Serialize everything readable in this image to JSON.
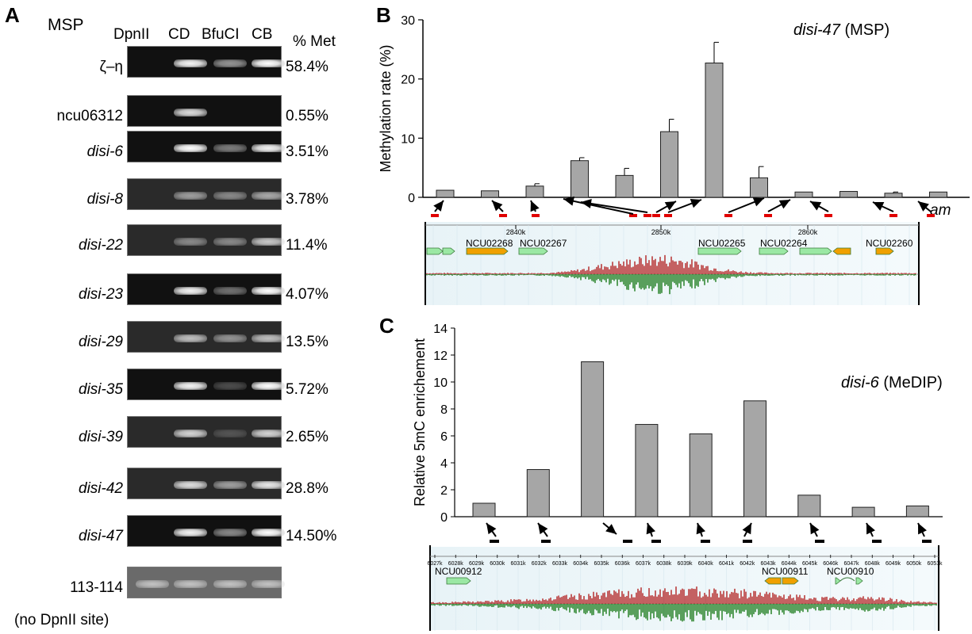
{
  "panel_labels": {
    "a": "A",
    "b": "B",
    "c": "C"
  },
  "panelA": {
    "title": "MSP",
    "lanes": [
      "DpnII",
      "CD",
      "BfuCI",
      "CB"
    ],
    "pct_header": "% Met",
    "rows": [
      {
        "name": "ζ–η",
        "italic": false,
        "pct": "58.4%",
        "bands": [
          0,
          0.95,
          0.55,
          1.0
        ]
      },
      {
        "name": "ncu06312",
        "italic": false,
        "pct": "0.55%",
        "bands": [
          0,
          0.85,
          0,
          0
        ]
      },
      {
        "name": "disi-6",
        "italic": true,
        "pct": "3.51%",
        "bands": [
          0,
          1.0,
          0.45,
          0.95
        ]
      },
      {
        "name": "disi-8",
        "italic": true,
        "pct": "3.78%",
        "bands": [
          0,
          0.55,
          0.45,
          0.6
        ]
      },
      {
        "name": "disi-22",
        "italic": true,
        "pct": "11.4%",
        "bands": [
          0,
          0.45,
          0.45,
          0.75
        ]
      },
      {
        "name": "disi-23",
        "italic": true,
        "pct": "4.07%",
        "bands": [
          0,
          0.95,
          0.4,
          1.0
        ]
      },
      {
        "name": "disi-29",
        "italic": true,
        "pct": "13.5%",
        "bands": [
          0,
          0.7,
          0.5,
          0.7
        ]
      },
      {
        "name": "disi-35",
        "italic": true,
        "pct": "5.72%",
        "bands": [
          0,
          0.95,
          0.25,
          1.0
        ]
      },
      {
        "name": "disi-39",
        "italic": true,
        "pct": "2.65%",
        "bands": [
          0,
          0.8,
          0.2,
          0.8
        ]
      },
      {
        "name": "disi-42",
        "italic": true,
        "pct": "28.8%",
        "bands": [
          0,
          0.85,
          0.55,
          0.9
        ]
      },
      {
        "name": "disi-47",
        "italic": true,
        "pct": "14.50%",
        "bands": [
          0,
          0.95,
          0.5,
          1.0
        ]
      },
      {
        "name": "113-114",
        "italic": false,
        "pct": "",
        "bands": [
          0.6,
          0.6,
          0.6,
          0.6
        ]
      }
    ],
    "last_row_note": "(no DpnII site)"
  },
  "chart_data": [
    {
      "type": "bar",
      "panel": "B",
      "title": "disi-47",
      "title_suffix": "(MSP)",
      "ylabel": "Methylation rate (%)",
      "ylim": [
        0,
        30
      ],
      "yticks": [
        0,
        10,
        20,
        30
      ],
      "values": [
        1.2,
        1.1,
        1.9,
        6.2,
        3.7,
        11.1,
        22.7,
        3.3,
        0.9,
        1.0,
        0.7,
        0.9
      ],
      "errors": [
        0,
        0,
        0.4,
        0.5,
        1.2,
        2.1,
        3.5,
        1.9,
        0,
        0,
        0.2,
        0
      ],
      "last_bar_label": "am",
      "browser": {
        "ticks": [
          "2840k",
          "2850k",
          "2860k"
        ],
        "genes": [
          "NCU02268",
          "NCU02267",
          "NCU02265",
          "NCU02264",
          "NCU02260"
        ]
      }
    },
    {
      "type": "bar",
      "panel": "C",
      "title": "disi-6",
      "title_suffix": "(MeDIP)",
      "ylabel": "Relative  5mC enrichement",
      "ylim": [
        0,
        14
      ],
      "yticks": [
        0,
        2,
        4,
        6,
        8,
        10,
        12,
        14
      ],
      "values": [
        1.0,
        3.5,
        11.5,
        6.85,
        6.15,
        8.6,
        1.6,
        0.7,
        0.8
      ],
      "browser": {
        "ticks": [
          "6027k",
          "6028k",
          "6029k",
          "6030k",
          "6031k",
          "6032k",
          "6033k",
          "6034k",
          "6035k",
          "6036k",
          "6037k",
          "6038k",
          "6039k",
          "6040k",
          "6041k",
          "6042k",
          "6043k",
          "6044k",
          "6045k",
          "6046k",
          "6047k",
          "6048k",
          "6049k",
          "6050k",
          "6051k"
        ],
        "genes": [
          "NCU00912",
          "NCU00911",
          "NCU00910"
        ]
      }
    }
  ],
  "colors": {
    "bar": "#a6a6a6",
    "bar_edge": "#222222",
    "primer": "#e00000",
    "gene_green": "#9be8a4",
    "gene_orange": "#f0a000",
    "track_red": "#b22222",
    "track_green": "#1a7a1a"
  }
}
